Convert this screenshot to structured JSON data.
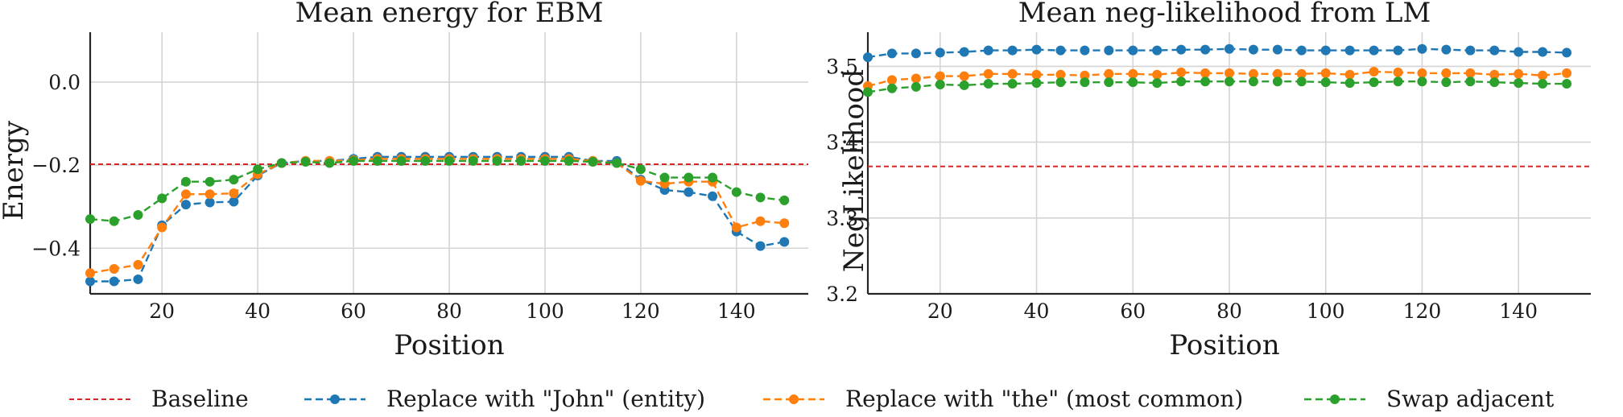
{
  "chart_data": [
    {
      "type": "line",
      "title": "Mean energy for EBM",
      "xlabel": "Position",
      "ylabel": "Energy",
      "xlim": [
        5,
        155
      ],
      "ylim": [
        -0.51,
        0.12
      ],
      "xticks": [
        20,
        40,
        60,
        80,
        100,
        120,
        140
      ],
      "yticks": [
        0.0,
        -0.2,
        -0.4
      ],
      "ytick_labels": [
        "0.0",
        "−0.2",
        "−0.4"
      ],
      "grid": true,
      "x": [
        5,
        10,
        15,
        20,
        25,
        30,
        35,
        40,
        45,
        50,
        55,
        60,
        65,
        70,
        75,
        80,
        85,
        90,
        95,
        100,
        105,
        110,
        115,
        120,
        125,
        130,
        135,
        140,
        145,
        150
      ],
      "baseline": -0.198,
      "series": [
        {
          "name": "Replace with \"John\" (entity)",
          "color": "#1f77b4",
          "values": [
            -0.48,
            -0.48,
            -0.475,
            -0.345,
            -0.295,
            -0.29,
            -0.288,
            -0.225,
            -0.195,
            -0.19,
            -0.19,
            -0.185,
            -0.18,
            -0.18,
            -0.18,
            -0.18,
            -0.18,
            -0.18,
            -0.18,
            -0.18,
            -0.18,
            -0.19,
            -0.19,
            -0.235,
            -0.26,
            -0.265,
            -0.275,
            -0.36,
            -0.395,
            -0.385
          ]
        },
        {
          "name": "Replace with \"the\" (most common)",
          "color": "#ff7f0e",
          "values": [
            -0.46,
            -0.45,
            -0.44,
            -0.35,
            -0.27,
            -0.27,
            -0.268,
            -0.222,
            -0.195,
            -0.19,
            -0.19,
            -0.188,
            -0.185,
            -0.185,
            -0.185,
            -0.185,
            -0.185,
            -0.185,
            -0.185,
            -0.185,
            -0.185,
            -0.19,
            -0.195,
            -0.238,
            -0.245,
            -0.24,
            -0.24,
            -0.35,
            -0.335,
            -0.34
          ]
        },
        {
          "name": "Swap adjacent",
          "color": "#2ca02c",
          "values": [
            -0.33,
            -0.335,
            -0.32,
            -0.28,
            -0.24,
            -0.24,
            -0.235,
            -0.21,
            -0.195,
            -0.192,
            -0.195,
            -0.19,
            -0.19,
            -0.19,
            -0.19,
            -0.19,
            -0.19,
            -0.19,
            -0.19,
            -0.19,
            -0.19,
            -0.192,
            -0.195,
            -0.21,
            -0.23,
            -0.23,
            -0.23,
            -0.265,
            -0.278,
            -0.285
          ]
        }
      ]
    },
    {
      "type": "line",
      "title": "Mean neg-likelihood from LM",
      "xlabel": "Position",
      "ylabel": "NegLikelihood",
      "xlim": [
        5,
        155
      ],
      "ylim": [
        3.2,
        3.545
      ],
      "xticks": [
        20,
        40,
        60,
        80,
        100,
        120,
        140
      ],
      "yticks": [
        3.5,
        3.4,
        3.3,
        3.2
      ],
      "ytick_labels": [
        "3.5",
        "3.4",
        "3.3",
        "3.2"
      ],
      "grid": true,
      "x": [
        5,
        10,
        15,
        20,
        25,
        30,
        35,
        40,
        45,
        50,
        55,
        60,
        65,
        70,
        75,
        80,
        85,
        90,
        95,
        100,
        105,
        110,
        115,
        120,
        125,
        130,
        135,
        140,
        145,
        150
      ],
      "baseline": 3.368,
      "series": [
        {
          "name": "Replace with \"John\" (entity)",
          "color": "#1f77b4",
          "values": [
            3.512,
            3.517,
            3.517,
            3.518,
            3.519,
            3.521,
            3.521,
            3.522,
            3.521,
            3.521,
            3.521,
            3.521,
            3.521,
            3.522,
            3.522,
            3.523,
            3.522,
            3.522,
            3.521,
            3.521,
            3.521,
            3.521,
            3.521,
            3.523,
            3.522,
            3.521,
            3.521,
            3.519,
            3.519,
            3.518
          ]
        },
        {
          "name": "Replace with \"the\" (most common)",
          "color": "#ff7f0e",
          "values": [
            3.474,
            3.482,
            3.484,
            3.487,
            3.487,
            3.49,
            3.49,
            3.489,
            3.489,
            3.488,
            3.49,
            3.49,
            3.489,
            3.492,
            3.491,
            3.491,
            3.49,
            3.49,
            3.49,
            3.491,
            3.489,
            3.493,
            3.492,
            3.491,
            3.491,
            3.491,
            3.489,
            3.49,
            3.488,
            3.491
          ]
        },
        {
          "name": "Swap adjacent",
          "color": "#2ca02c",
          "values": [
            3.466,
            3.471,
            3.473,
            3.476,
            3.475,
            3.477,
            3.477,
            3.478,
            3.479,
            3.479,
            3.479,
            3.479,
            3.478,
            3.48,
            3.48,
            3.48,
            3.48,
            3.48,
            3.48,
            3.479,
            3.478,
            3.479,
            3.48,
            3.48,
            3.479,
            3.48,
            3.479,
            3.478,
            3.477,
            3.477
          ]
        }
      ]
    }
  ],
  "legend": {
    "placement": "bottom",
    "entries": [
      {
        "label": "Baseline",
        "color": "#d62728",
        "marker": false
      },
      {
        "label": "Replace with \"John\" (entity)",
        "color": "#1f77b4",
        "marker": true
      },
      {
        "label": "Replace with \"the\" (most common)",
        "color": "#ff7f0e",
        "marker": true
      },
      {
        "label": "Swap adjacent",
        "color": "#2ca02c",
        "marker": true
      }
    ]
  },
  "baseline_color": "#d62728"
}
